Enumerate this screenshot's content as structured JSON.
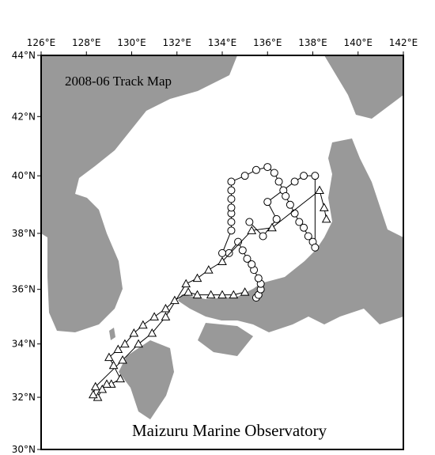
{
  "title": "2008-06 Track Map",
  "credit": "Maizuru Marine Observatory",
  "lonlim": [
    126,
    142
  ],
  "latlim": [
    30,
    44
  ],
  "lon_ticks": [
    {
      "value": 126,
      "label": "126°E"
    },
    {
      "value": 128,
      "label": "128°E"
    },
    {
      "value": 130,
      "label": "130°E"
    },
    {
      "value": 132,
      "label": "132°E"
    },
    {
      "value": 134,
      "label": "134°E"
    },
    {
      "value": 136,
      "label": "136°E"
    },
    {
      "value": 138,
      "label": "138°E"
    },
    {
      "value": 140,
      "label": "140°E"
    },
    {
      "value": 142,
      "label": "142°E"
    }
  ],
  "lat_ticks": [
    {
      "value": 30,
      "label": "30°N"
    },
    {
      "value": 32,
      "label": "32°N"
    },
    {
      "value": 34,
      "label": "34°N"
    },
    {
      "value": 36,
      "label": "36°N"
    },
    {
      "value": 38,
      "label": "38°N"
    },
    {
      "value": 40,
      "label": "40°N"
    },
    {
      "value": 42,
      "label": "42°N"
    },
    {
      "value": 44,
      "label": "44°N"
    }
  ],
  "tracks": [
    {
      "marker": "circle",
      "lon": [
        135.5,
        135.6,
        135.7,
        135.7,
        135.6,
        135.4,
        135.3,
        135.1,
        134.9,
        134.7,
        134.3,
        134.0,
        134.4,
        134.4,
        134.4,
        134.4,
        134.4,
        134.4,
        134.4,
        135.0,
        135.5,
        136.0,
        136.3,
        136.5,
        136.7,
        136.8,
        137.0,
        137.2,
        137.4,
        137.6,
        137.8,
        138.0,
        138.1,
        138.1,
        137.6,
        137.2,
        136.0,
        136.4,
        135.8,
        135.2
      ],
      "lat": [
        35.7,
        35.8,
        36.0,
        36.2,
        36.4,
        36.7,
        36.9,
        37.1,
        37.4,
        37.7,
        37.3,
        37.3,
        38.1,
        38.4,
        38.7,
        38.9,
        39.2,
        39.5,
        39.8,
        40.0,
        40.2,
        40.3,
        40.1,
        39.8,
        39.5,
        39.3,
        39.0,
        38.7,
        38.4,
        38.2,
        37.9,
        37.7,
        37.5,
        40.0,
        40.0,
        39.8,
        39.1,
        38.5,
        37.9,
        38.4
      ]
    },
    {
      "marker": "triangle",
      "lon": [
        135.0,
        134.5,
        134.0,
        133.5,
        132.9,
        132.5,
        131.9,
        131.5,
        131.0,
        130.5,
        130.1,
        129.7,
        129.4,
        129.0,
        129.2,
        129.5,
        129.1,
        128.9,
        128.7,
        128.5,
        128.3,
        128.4,
        129.6,
        130.3,
        130.9,
        131.5,
        132.4,
        132.9,
        133.4,
        134.0,
        135.3,
        136.2,
        138.3,
        138.5,
        138.6
      ],
      "lat": [
        35.9,
        35.8,
        35.8,
        35.8,
        35.8,
        35.9,
        35.6,
        35.3,
        35.0,
        34.7,
        34.4,
        34.0,
        33.8,
        33.5,
        33.2,
        32.7,
        32.5,
        32.5,
        32.3,
        32.0,
        32.1,
        32.4,
        33.4,
        34.0,
        34.4,
        35.0,
        36.2,
        36.4,
        36.7,
        37.0,
        38.1,
        38.2,
        39.5,
        38.9,
        38.5
      ]
    }
  ]
}
